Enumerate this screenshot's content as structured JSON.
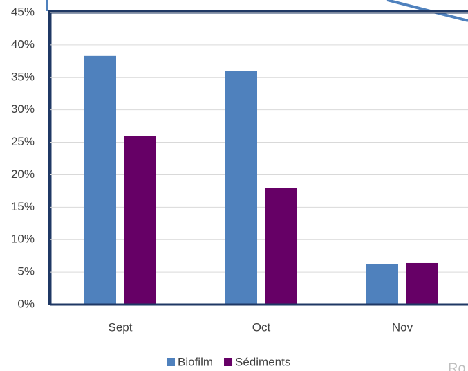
{
  "chart_data": {
    "type": "bar",
    "categories": [
      "Sept",
      "Oct",
      "Nov"
    ],
    "series": [
      {
        "name": "Biofilm",
        "color": "#4f81bd",
        "values": [
          38.3,
          36,
          6.2
        ]
      },
      {
        "name": "Sédiments",
        "color": "#660066",
        "values": [
          26,
          18,
          6.4
        ]
      }
    ],
    "ylim": [
      0,
      45
    ],
    "yticks": [
      {
        "value": 0,
        "label": "0%"
      },
      {
        "value": 5,
        "label": "5%"
      },
      {
        "value": 10,
        "label": "10%"
      },
      {
        "value": 15,
        "label": "15%"
      },
      {
        "value": 20,
        "label": "20%"
      },
      {
        "value": 25,
        "label": "25%"
      },
      {
        "value": 30,
        "label": "30%"
      },
      {
        "value": 35,
        "label": "35%"
      },
      {
        "value": 40,
        "label": "40%"
      },
      {
        "value": 45,
        "label": "45%"
      }
    ],
    "grid": true,
    "legend": "bottom",
    "annotation": "Ro"
  }
}
